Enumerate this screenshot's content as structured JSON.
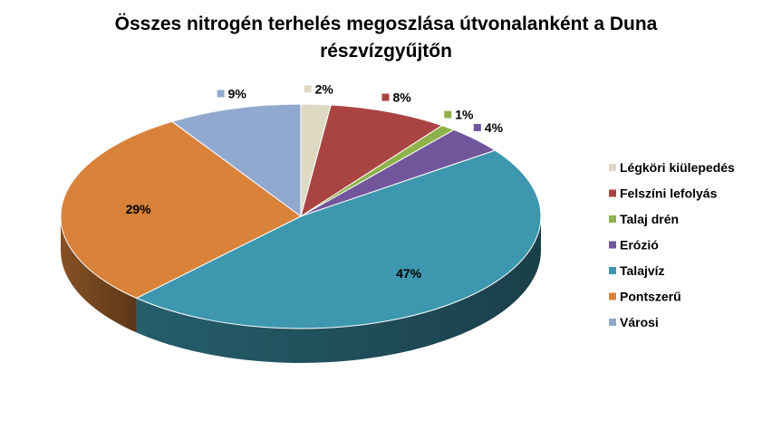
{
  "chart_data": {
    "type": "pie",
    "title": "Összes nitrogén terhelés megoszlása útvonalanként a Duna részvízgyűjtőn",
    "title_lines": [
      "Összes nitrogén terhelés megoszlása útvonalanként a Duna",
      "részvízgyűjtőn"
    ],
    "categories": [
      "Légköri kiülepedés",
      "Felszíni lefolyás",
      "Talaj drén",
      "Erózió",
      "Talajvíz",
      "Pontszerű",
      "Városi"
    ],
    "values": [
      2,
      8,
      1,
      4,
      47,
      29,
      9
    ],
    "labels": [
      "2%",
      "8%",
      "1%",
      "4%",
      "47%",
      "29%",
      "9%"
    ],
    "colors": [
      "#ddd9c3",
      "#a94442",
      "#8eb149",
      "#72569c",
      "#3d97ae",
      "#d8823a",
      "#92a9cf"
    ],
    "style": "3d",
    "legend": "right"
  }
}
